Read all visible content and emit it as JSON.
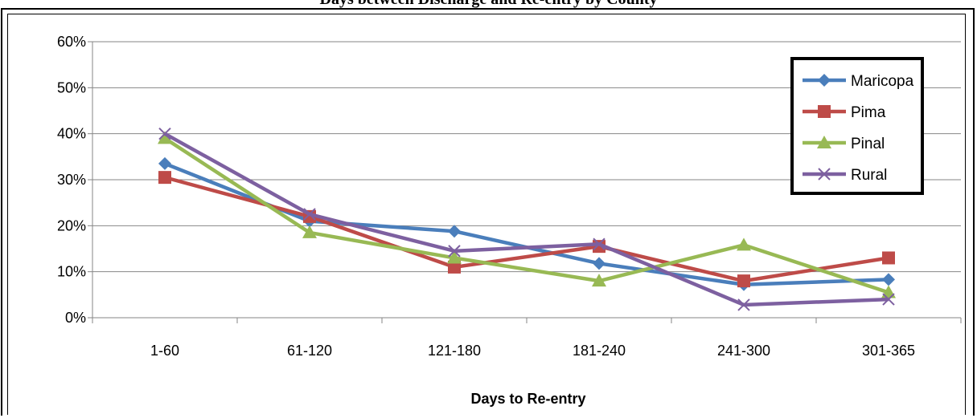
{
  "chart_data": {
    "type": "line",
    "title": "Days between Discharge and Re-entry by County",
    "xlabel": "Days to Re-entry",
    "ylabel": "",
    "categories": [
      "1-60",
      "61-120",
      "121-180",
      "181-240",
      "241-300",
      "301-365"
    ],
    "ylim": [
      0,
      60
    ],
    "yticks": [
      0,
      10,
      20,
      30,
      40,
      50,
      60
    ],
    "ytick_labels": [
      "0%",
      "10%",
      "20%",
      "30%",
      "40%",
      "50%",
      "60%"
    ],
    "grid": "horizontal",
    "legend_position": "top-right",
    "series": [
      {
        "name": "Maricopa",
        "color": "#4A7EBB",
        "marker": "diamond",
        "values": [
          33.5,
          21,
          18.8,
          11.8,
          7.2,
          8.3
        ]
      },
      {
        "name": "Pima",
        "color": "#BE4B48",
        "marker": "square",
        "values": [
          30.5,
          22,
          11,
          15.5,
          8,
          13
        ]
      },
      {
        "name": "Pinal",
        "color": "#98B954",
        "marker": "triangle",
        "values": [
          39,
          18.5,
          13,
          8,
          15.8,
          5.5
        ]
      },
      {
        "name": "Rural",
        "color": "#7D60A0",
        "marker": "x",
        "values": [
          40,
          22.5,
          14.5,
          16,
          2.8,
          4
        ]
      }
    ]
  }
}
